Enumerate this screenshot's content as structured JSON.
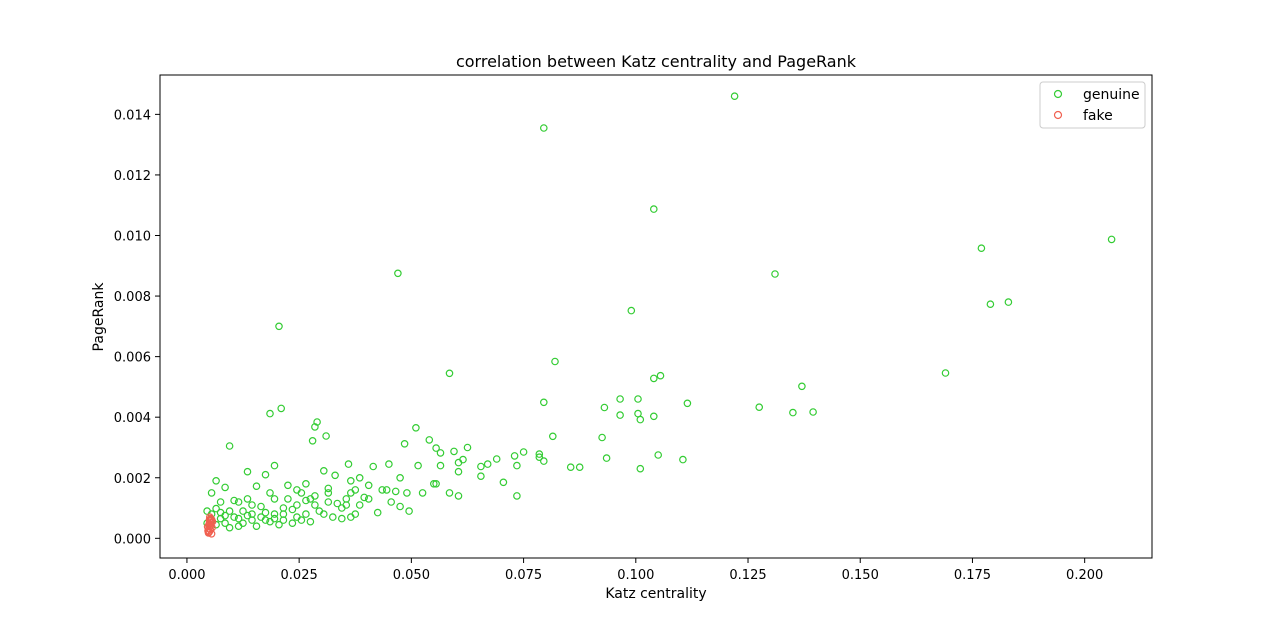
{
  "chart_data": {
    "type": "scatter",
    "title": "correlation between Katz centrality and PageRank",
    "xlabel": "Katz centrality",
    "ylabel": "PageRank",
    "xlim": [
      -0.006,
      0.215
    ],
    "ylim": [
      -0.00065,
      0.0153
    ],
    "xticks": [
      0.0,
      0.025,
      0.05,
      0.075,
      0.1,
      0.125,
      0.15,
      0.175,
      0.2
    ],
    "xtick_labels": [
      "0.000",
      "0.025",
      "0.050",
      "0.075",
      "0.100",
      "0.125",
      "0.150",
      "0.175",
      "0.200"
    ],
    "yticks": [
      0.0,
      0.002,
      0.004,
      0.006,
      0.008,
      0.01,
      0.012,
      0.014
    ],
    "ytick_labels": [
      "0.000",
      "0.002",
      "0.004",
      "0.006",
      "0.008",
      "0.010",
      "0.012",
      "0.014"
    ],
    "grid": false,
    "legend_position": "top-right",
    "marker": "hollow-circle",
    "series": [
      {
        "name": "genuine",
        "color": "#33cc33",
        "points": [
          [
            0.122,
            0.0146
          ],
          [
            0.0795,
            0.01355
          ],
          [
            0.104,
            0.01087
          ],
          [
            0.206,
            0.00987
          ],
          [
            0.177,
            0.00958
          ],
          [
            0.047,
            0.00875
          ],
          [
            0.131,
            0.00873
          ],
          [
            0.183,
            0.0078
          ],
          [
            0.179,
            0.00773
          ],
          [
            0.099,
            0.00752
          ],
          [
            0.0205,
            0.007
          ],
          [
            0.082,
            0.00584
          ],
          [
            0.169,
            0.00546
          ],
          [
            0.0585,
            0.00545
          ],
          [
            0.1055,
            0.00537
          ],
          [
            0.104,
            0.00528
          ],
          [
            0.137,
            0.00502
          ],
          [
            0.0965,
            0.0046
          ],
          [
            0.1005,
            0.0046
          ],
          [
            0.0795,
            0.00449
          ],
          [
            0.1115,
            0.00446
          ],
          [
            0.093,
            0.00432
          ],
          [
            0.1275,
            0.00433
          ],
          [
            0.021,
            0.00429
          ],
          [
            0.1395,
            0.00417
          ],
          [
            0.135,
            0.00415
          ],
          [
            0.0185,
            0.00412
          ],
          [
            0.1005,
            0.00412
          ],
          [
            0.0965,
            0.00407
          ],
          [
            0.104,
            0.00403
          ],
          [
            0.101,
            0.00392
          ],
          [
            0.029,
            0.00384
          ],
          [
            0.0285,
            0.00368
          ],
          [
            0.051,
            0.00365
          ],
          [
            0.031,
            0.00338
          ],
          [
            0.0815,
            0.00337
          ],
          [
            0.0925,
            0.00333
          ],
          [
            0.054,
            0.00325
          ],
          [
            0.028,
            0.00322
          ],
          [
            0.0485,
            0.00312
          ],
          [
            0.0095,
            0.00305
          ],
          [
            0.0625,
            0.003
          ],
          [
            0.0555,
            0.00298
          ],
          [
            0.0595,
            0.00287
          ],
          [
            0.0565,
            0.00282
          ],
          [
            0.075,
            0.00285
          ],
          [
            0.0785,
            0.00278
          ],
          [
            0.105,
            0.00275
          ],
          [
            0.073,
            0.00272
          ],
          [
            0.0785,
            0.00268
          ],
          [
            0.0935,
            0.00265
          ],
          [
            0.069,
            0.00262
          ],
          [
            0.0615,
            0.0026
          ],
          [
            0.0795,
            0.00255
          ],
          [
            0.1105,
            0.0026
          ],
          [
            0.036,
            0.00245
          ],
          [
            0.045,
            0.00245
          ],
          [
            0.067,
            0.00245
          ],
          [
            0.0195,
            0.0024
          ],
          [
            0.0415,
            0.00237
          ],
          [
            0.0655,
            0.00237
          ],
          [
            0.0735,
            0.0024
          ],
          [
            0.0565,
            0.0024
          ],
          [
            0.0515,
            0.0024
          ],
          [
            0.0855,
            0.00235
          ],
          [
            0.101,
            0.0023
          ],
          [
            0.0875,
            0.00235
          ],
          [
            0.0305,
            0.00223
          ],
          [
            0.0605,
            0.0022
          ],
          [
            0.0135,
            0.0022
          ],
          [
            0.0175,
            0.0021
          ],
          [
            0.033,
            0.00208
          ],
          [
            0.0655,
            0.00205
          ],
          [
            0.0475,
            0.002
          ],
          [
            0.0385,
            0.002
          ],
          [
            0.0065,
            0.0019
          ],
          [
            0.0265,
            0.0018
          ],
          [
            0.0365,
            0.0019
          ],
          [
            0.055,
            0.0018
          ],
          [
            0.0705,
            0.00185
          ],
          [
            0.0405,
            0.00175
          ],
          [
            0.0225,
            0.00175
          ],
          [
            0.0155,
            0.00172
          ],
          [
            0.0085,
            0.00168
          ],
          [
            0.0315,
            0.00165
          ],
          [
            0.0435,
            0.0016
          ],
          [
            0.0245,
            0.0016
          ],
          [
            0.0465,
            0.00155
          ],
          [
            0.0585,
            0.0015
          ],
          [
            0.049,
            0.0015
          ],
          [
            0.0605,
            0.0014
          ],
          [
            0.0735,
            0.0014
          ],
          [
            0.0285,
            0.0014
          ],
          [
            0.0195,
            0.0013
          ],
          [
            0.0355,
            0.0013
          ],
          [
            0.0115,
            0.0012
          ],
          [
            0.0455,
            0.0012
          ],
          [
            0.0265,
            0.00125
          ],
          [
            0.0385,
            0.0011
          ],
          [
            0.0475,
            0.00105
          ],
          [
            0.0215,
            0.001
          ],
          [
            0.0345,
            0.001
          ],
          [
            0.0425,
            0.00085
          ],
          [
            0.0365,
            0.0007
          ],
          [
            0.0075,
            0.0012
          ],
          [
            0.0055,
            0.0015
          ],
          [
            0.0105,
            0.00125
          ],
          [
            0.0145,
            0.0011
          ],
          [
            0.0175,
            0.00085
          ],
          [
            0.0235,
            0.00095
          ],
          [
            0.0305,
            0.0008
          ],
          [
            0.0345,
            0.00065
          ],
          [
            0.0255,
            0.0006
          ],
          [
            0.0185,
            0.00055
          ],
          [
            0.0125,
            0.0005
          ],
          [
            0.0085,
            0.0005
          ],
          [
            0.0055,
            0.0008
          ],
          [
            0.0065,
            0.00098
          ],
          [
            0.0095,
            0.0009
          ],
          [
            0.0135,
            0.00075
          ],
          [
            0.0165,
            0.0007
          ],
          [
            0.0215,
            0.0006
          ],
          [
            0.0275,
            0.00055
          ],
          [
            0.0325,
            0.0007
          ],
          [
            0.0375,
            0.0008
          ],
          [
            0.0075,
            0.00065
          ],
          [
            0.0105,
            0.0007
          ],
          [
            0.0145,
            0.0006
          ],
          [
            0.0195,
            0.0008
          ],
          [
            0.0245,
            0.0007
          ],
          [
            0.0295,
            0.0009
          ],
          [
            0.0335,
            0.00115
          ],
          [
            0.0395,
            0.00135
          ],
          [
            0.0165,
            0.00105
          ],
          [
            0.0125,
            0.0009
          ],
          [
            0.0065,
            0.00045
          ],
          [
            0.0095,
            0.00035
          ],
          [
            0.0115,
            0.0004
          ],
          [
            0.0155,
            0.0004
          ],
          [
            0.0205,
            0.00045
          ],
          [
            0.0265,
            0.0008
          ],
          [
            0.0315,
            0.0012
          ],
          [
            0.0225,
            0.0013
          ],
          [
            0.0185,
            0.0015
          ],
          [
            0.0255,
            0.0015
          ],
          [
            0.0315,
            0.0015
          ],
          [
            0.0285,
            0.0011
          ],
          [
            0.0365,
            0.0015
          ],
          [
            0.0135,
            0.0013
          ],
          [
            0.0075,
            0.00085
          ],
          [
            0.0055,
            0.0006
          ],
          [
            0.0085,
            0.00075
          ],
          [
            0.0115,
            0.00065
          ],
          [
            0.0175,
            0.0006
          ],
          [
            0.0235,
            0.0005
          ],
          [
            0.0045,
            0.0009
          ],
          [
            0.0045,
            0.0005
          ],
          [
            0.0145,
            0.0008
          ],
          [
            0.0195,
            0.00065
          ],
          [
            0.0215,
            0.0008
          ],
          [
            0.0245,
            0.0011
          ],
          [
            0.0275,
            0.0013
          ],
          [
            0.0355,
            0.0011
          ],
          [
            0.0405,
            0.0013
          ],
          [
            0.0445,
            0.0016
          ],
          [
            0.0495,
            0.0009
          ],
          [
            0.0525,
            0.0015
          ],
          [
            0.0555,
            0.0018
          ],
          [
            0.0605,
            0.0025
          ],
          [
            0.0375,
            0.0016
          ]
        ]
      },
      {
        "name": "fake",
        "color": "#f06050",
        "points": [
          [
            0.0048,
            0.00018
          ],
          [
            0.005,
            0.00022
          ],
          [
            0.0052,
            0.00028
          ],
          [
            0.0049,
            0.00032
          ],
          [
            0.0051,
            0.00038
          ],
          [
            0.0053,
            0.00042
          ],
          [
            0.005,
            0.00048
          ],
          [
            0.0054,
            0.00052
          ],
          [
            0.0052,
            0.00058
          ],
          [
            0.0055,
            0.00062
          ],
          [
            0.0047,
            0.00025
          ],
          [
            0.0056,
            0.00035
          ],
          [
            0.0053,
            0.00065
          ],
          [
            0.0051,
            0.0007
          ],
          [
            0.0049,
            0.00045
          ],
          [
            0.0055,
            0.00015
          ],
          [
            0.0046,
            0.00038
          ],
          [
            0.0057,
            0.00055
          ],
          [
            0.005,
            0.0006
          ],
          [
            0.0048,
            0.0002
          ]
        ]
      }
    ]
  }
}
